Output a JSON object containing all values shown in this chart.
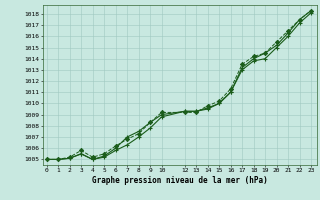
{
  "bg_color": "#c8e8e0",
  "grid_color": "#a0c8c0",
  "line_color": "#1a5c1a",
  "xlabel": "Graphe pression niveau de la mer (hPa)",
  "ylim": [
    1004.5,
    1018.8
  ],
  "yticks": [
    1005,
    1006,
    1007,
    1008,
    1009,
    1010,
    1011,
    1012,
    1013,
    1014,
    1015,
    1016,
    1017,
    1018
  ],
  "xticks": [
    0,
    1,
    2,
    3,
    4,
    5,
    6,
    7,
    8,
    9,
    10,
    12,
    13,
    14,
    15,
    16,
    17,
    18,
    19,
    20,
    21,
    22,
    23
  ],
  "xlim": [
    -0.3,
    23.5
  ],
  "series1_x": [
    0,
    1,
    2,
    3,
    4,
    5,
    6,
    7,
    8,
    9,
    10,
    12,
    13,
    14,
    15,
    16,
    17,
    18,
    19,
    20,
    21,
    22,
    23
  ],
  "series1_y": [
    1005.0,
    1005.0,
    1005.1,
    1005.5,
    1005.0,
    1005.3,
    1006.0,
    1007.0,
    1007.5,
    1008.3,
    1009.0,
    1009.3,
    1009.3,
    1009.6,
    1010.0,
    1011.0,
    1013.0,
    1013.8,
    1014.0,
    1015.0,
    1016.0,
    1017.2,
    1018.1
  ],
  "series2_x": [
    0,
    1,
    2,
    3,
    4,
    5,
    6,
    7,
    8,
    9,
    10,
    12,
    13,
    14,
    15,
    16,
    17,
    18,
    19,
    20,
    21,
    22,
    23
  ],
  "series2_y": [
    1005.0,
    1005.0,
    1005.1,
    1005.5,
    1005.0,
    1005.2,
    1005.8,
    1006.3,
    1007.0,
    1007.8,
    1008.8,
    1009.3,
    1009.3,
    1009.5,
    1010.0,
    1011.0,
    1013.2,
    1014.0,
    1014.5,
    1015.2,
    1016.3,
    1017.5,
    1018.3
  ],
  "series3_x": [
    0,
    1,
    2,
    3,
    4,
    5,
    6,
    7,
    8,
    9,
    10,
    12,
    13,
    14,
    15,
    16,
    17,
    18,
    19,
    20,
    21,
    22,
    23
  ],
  "series3_y": [
    1005.0,
    1005.0,
    1005.2,
    1005.8,
    1005.2,
    1005.5,
    1006.2,
    1006.8,
    1007.3,
    1008.3,
    1009.2,
    1009.2,
    1009.2,
    1009.8,
    1010.2,
    1011.3,
    1013.5,
    1014.2,
    1014.5,
    1015.5,
    1016.5,
    1017.5,
    1018.3
  ],
  "yticklabels": [
    "1005",
    "1006",
    "1007",
    "1008",
    "1009",
    "1010",
    "1011",
    "1012",
    "1013",
    "1014",
    "1015",
    "1016",
    "1017",
    "1018"
  ],
  "xticklabels": [
    "0",
    "1",
    "2",
    "3",
    "4",
    "5",
    "6",
    "7",
    "8",
    "9",
    "10",
    "12",
    "13",
    "14",
    "15",
    "16",
    "17",
    "18",
    "19",
    "20",
    "21",
    "22",
    "23"
  ]
}
